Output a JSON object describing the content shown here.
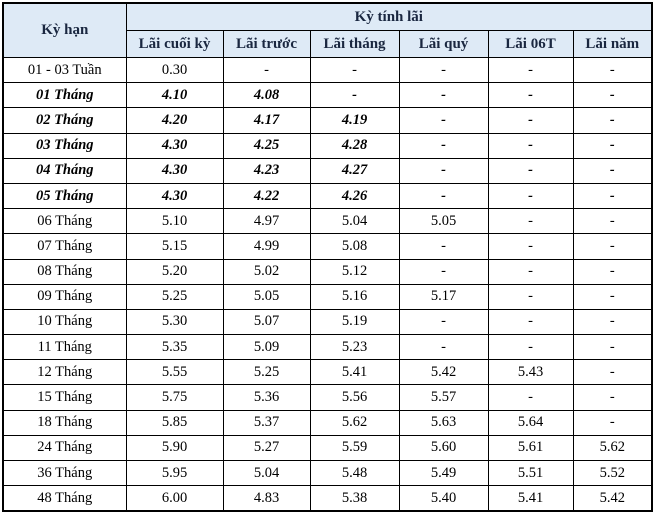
{
  "table": {
    "corner_header": "Kỳ hạn",
    "group_header": "Kỳ tính lãi",
    "columns": [
      "Lãi cuối kỳ",
      "Lãi trước",
      "Lãi tháng",
      "Lãi quý",
      "Lãi 06T",
      "Lãi năm"
    ],
    "rows": [
      {
        "term": "01 - 03 Tuần",
        "values": [
          "0.30",
          "-",
          "-",
          "-",
          "-",
          "-"
        ],
        "emphasis": false
      },
      {
        "term": "01 Tháng",
        "values": [
          "4.10",
          "4.08",
          "-",
          "-",
          "-",
          "-"
        ],
        "emphasis": true
      },
      {
        "term": "02 Tháng",
        "values": [
          "4.20",
          "4.17",
          "4.19",
          "-",
          "-",
          "-"
        ],
        "emphasis": true
      },
      {
        "term": "03 Tháng",
        "values": [
          "4.30",
          "4.25",
          "4.28",
          "-",
          "-",
          "-"
        ],
        "emphasis": true
      },
      {
        "term": "04 Tháng",
        "values": [
          "4.30",
          "4.23",
          "4.27",
          "-",
          "-",
          "-"
        ],
        "emphasis": true
      },
      {
        "term": "05 Tháng",
        "values": [
          "4.30",
          "4.22",
          "4.26",
          "-",
          "-",
          "-"
        ],
        "emphasis": true
      },
      {
        "term": "06 Tháng",
        "values": [
          "5.10",
          "4.97",
          "5.04",
          "5.05",
          "-",
          "-"
        ],
        "emphasis": false
      },
      {
        "term": "07 Tháng",
        "values": [
          "5.15",
          "4.99",
          "5.08",
          "-",
          "-",
          "-"
        ],
        "emphasis": false
      },
      {
        "term": "08 Tháng",
        "values": [
          "5.20",
          "5.02",
          "5.12",
          "-",
          "-",
          "-"
        ],
        "emphasis": false
      },
      {
        "term": "09 Tháng",
        "values": [
          "5.25",
          "5.05",
          "5.16",
          "5.17",
          "-",
          "-"
        ],
        "emphasis": false
      },
      {
        "term": "10 Tháng",
        "values": [
          "5.30",
          "5.07",
          "5.19",
          "-",
          "-",
          "-"
        ],
        "emphasis": false
      },
      {
        "term": "11 Tháng",
        "values": [
          "5.35",
          "5.09",
          "5.23",
          "-",
          "-",
          "-"
        ],
        "emphasis": false
      },
      {
        "term": "12 Tháng",
        "values": [
          "5.55",
          "5.25",
          "5.41",
          "5.42",
          "5.43",
          "-"
        ],
        "emphasis": false
      },
      {
        "term": "15 Tháng",
        "values": [
          "5.75",
          "5.36",
          "5.56",
          "5.57",
          "-",
          "-"
        ],
        "emphasis": false
      },
      {
        "term": "18 Tháng",
        "values": [
          "5.85",
          "5.37",
          "5.62",
          "5.63",
          "5.64",
          "-"
        ],
        "emphasis": false
      },
      {
        "term": "24 Tháng",
        "values": [
          "5.90",
          "5.27",
          "5.59",
          "5.60",
          "5.61",
          "5.62"
        ],
        "emphasis": false
      },
      {
        "term": "36 Tháng",
        "values": [
          "5.95",
          "5.04",
          "5.48",
          "5.49",
          "5.51",
          "5.52"
        ],
        "emphasis": false
      },
      {
        "term": "48 Tháng",
        "values": [
          "6.00",
          "4.83",
          "5.38",
          "5.40",
          "5.41",
          "5.42"
        ],
        "emphasis": false
      }
    ],
    "colors": {
      "header_bg": "#DEEAF6",
      "header_text": "#1A2740",
      "border": "#000000",
      "cell_bg": "#FFFFFF",
      "cell_text": "#000000"
    }
  },
  "chart_data": {
    "type": "table",
    "title": "Kỳ tính lãi",
    "row_header": "Kỳ hạn",
    "columns": [
      "Lãi cuối kỳ",
      "Lãi trước",
      "Lãi tháng",
      "Lãi quý",
      "Lãi 06T",
      "Lãi năm"
    ],
    "categories": [
      "01 - 03 Tuần",
      "01 Tháng",
      "02 Tháng",
      "03 Tháng",
      "04 Tháng",
      "05 Tháng",
      "06 Tháng",
      "07 Tháng",
      "08 Tháng",
      "09 Tháng",
      "10 Tháng",
      "11 Tháng",
      "12 Tháng",
      "15 Tháng",
      "18 Tháng",
      "24 Tháng",
      "36 Tháng",
      "48 Tháng"
    ],
    "series": [
      {
        "name": "Lãi cuối kỳ",
        "values": [
          0.3,
          4.1,
          4.2,
          4.3,
          4.3,
          4.3,
          5.1,
          5.15,
          5.2,
          5.25,
          5.3,
          5.35,
          5.55,
          5.75,
          5.85,
          5.9,
          5.95,
          6.0
        ]
      },
      {
        "name": "Lãi trước",
        "values": [
          null,
          4.08,
          4.17,
          4.25,
          4.23,
          4.22,
          4.97,
          4.99,
          5.02,
          5.05,
          5.07,
          5.09,
          5.25,
          5.36,
          5.37,
          5.27,
          5.04,
          4.83
        ]
      },
      {
        "name": "Lãi tháng",
        "values": [
          null,
          null,
          4.19,
          4.28,
          4.27,
          4.26,
          5.04,
          5.08,
          5.12,
          5.16,
          5.19,
          5.23,
          5.41,
          5.56,
          5.62,
          5.59,
          5.48,
          5.38
        ]
      },
      {
        "name": "Lãi quý",
        "values": [
          null,
          null,
          null,
          null,
          null,
          null,
          5.05,
          null,
          null,
          5.17,
          null,
          null,
          5.42,
          5.57,
          5.63,
          5.6,
          5.49,
          5.4
        ]
      },
      {
        "name": "Lãi 06T",
        "values": [
          null,
          null,
          null,
          null,
          null,
          null,
          null,
          null,
          null,
          null,
          null,
          null,
          5.43,
          null,
          5.64,
          5.61,
          5.51,
          5.41
        ]
      },
      {
        "name": "Lãi năm",
        "values": [
          null,
          null,
          null,
          null,
          null,
          null,
          null,
          null,
          null,
          null,
          null,
          null,
          null,
          null,
          null,
          5.62,
          5.52,
          5.42
        ]
      }
    ]
  }
}
